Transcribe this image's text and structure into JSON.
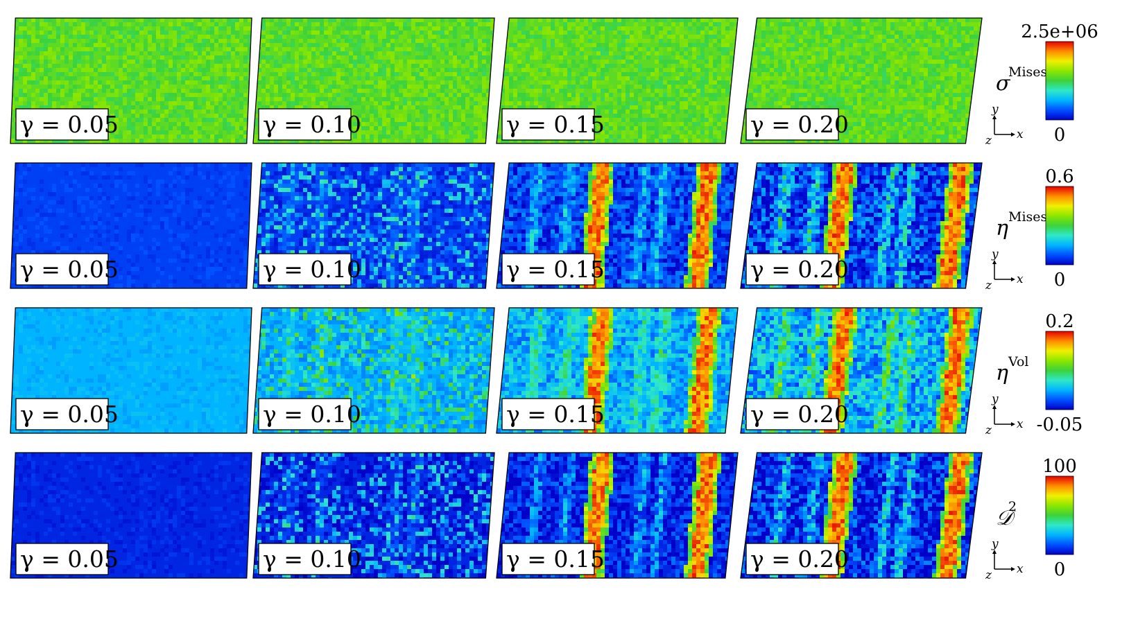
{
  "figure": {
    "rows": [
      {
        "quantity": "σ",
        "superscript": "Mises",
        "colorbar": {
          "max": "2.5e+06",
          "min": "0"
        },
        "field": "stress",
        "panels": [
          {
            "label": "γ = 0.05",
            "strain": 0.05
          },
          {
            "label": "γ = 0.10",
            "strain": 0.1
          },
          {
            "label": "γ = 0.15",
            "strain": 0.15
          },
          {
            "label": "γ = 0.20",
            "strain": 0.2
          }
        ]
      },
      {
        "quantity": "η",
        "superscript": "Mises",
        "colorbar": {
          "max": "0.6",
          "min": "0"
        },
        "field": "localized",
        "background_level": 0.1,
        "panels": [
          {
            "label": "γ = 0.05",
            "strain": 0.05
          },
          {
            "label": "γ = 0.10",
            "strain": 0.1
          },
          {
            "label": "γ = 0.15",
            "strain": 0.15
          },
          {
            "label": "γ = 0.20",
            "strain": 0.2
          }
        ]
      },
      {
        "quantity": "η",
        "superscript": "Vol",
        "colorbar": {
          "max": "0.2",
          "min": "-0.05"
        },
        "field": "localized",
        "background_level": 0.25,
        "panels": [
          {
            "label": "γ = 0.05",
            "strain": 0.05
          },
          {
            "label": "γ = 0.10",
            "strain": 0.1
          },
          {
            "label": "γ = 0.15",
            "strain": 0.15
          },
          {
            "label": "γ = 0.20",
            "strain": 0.2
          }
        ]
      },
      {
        "quantity": "𝒟",
        "superscript": "2",
        "colorbar": {
          "max": "100",
          "min": "0"
        },
        "field": "localized",
        "background_level": 0.06,
        "panels": [
          {
            "label": "γ = 0.05",
            "strain": 0.05
          },
          {
            "label": "γ = 0.10",
            "strain": 0.1
          },
          {
            "label": "γ = 0.15",
            "strain": 0.15
          },
          {
            "label": "γ = 0.20",
            "strain": 0.2
          }
        ]
      }
    ],
    "axes": {
      "x": "x",
      "y": "y",
      "z": "z"
    },
    "colormap": [
      "#0000c8",
      "#0050ff",
      "#00b4ff",
      "#2ee8c8",
      "#3cd23c",
      "#8ce600",
      "#f0f000",
      "#ff8c00",
      "#e60000"
    ]
  }
}
